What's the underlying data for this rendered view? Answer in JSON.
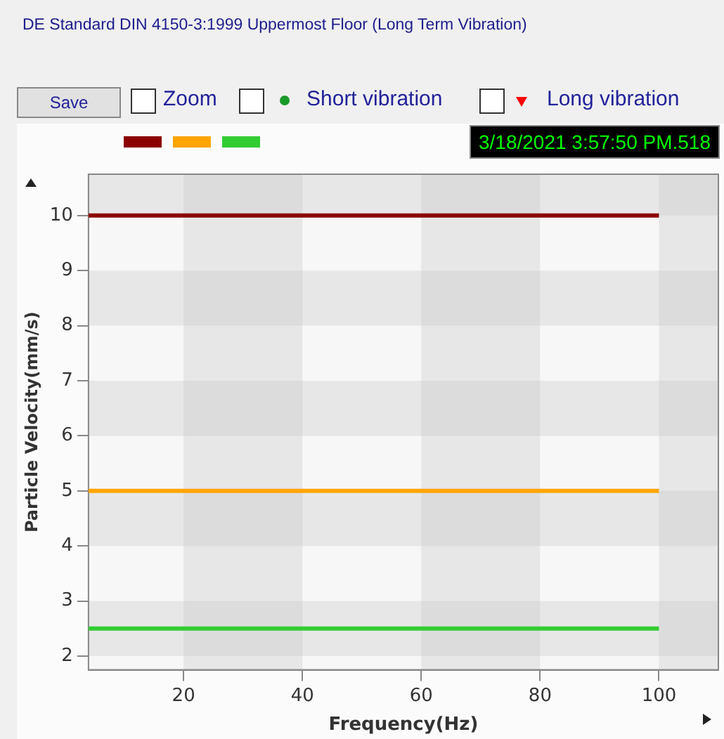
{
  "chart_data": {
    "type": "line",
    "title": "DE Standard DIN 4150-3:1999 Uppermost Floor (Long Term Vibration)",
    "xlabel": "Frequency(Hz)",
    "ylabel": "Particle Velocity(mm/s)",
    "annotations": [
      "Save",
      "Zoom",
      "Short vibration",
      "Long vibration",
      "3/18/2021 3:57:50 PM.518"
    ],
    "x": [
      4,
      100
    ],
    "series": [
      {
        "color": "#8b0000",
        "values": [
          10,
          10
        ]
      },
      {
        "color": "#ffa500",
        "values": [
          5,
          5
        ]
      },
      {
        "color": "#32cd32",
        "values": [
          2.5,
          2.5
        ]
      }
    ],
    "xlim": [
      4,
      110
    ],
    "xticks": [
      20,
      40,
      60,
      80,
      100
    ],
    "ylim": [
      1.75,
      10.75
    ],
    "yticks": [
      2,
      3,
      4,
      5,
      6,
      7,
      8,
      9,
      10
    ],
    "marker": "none",
    "line_style": "solid"
  }
}
